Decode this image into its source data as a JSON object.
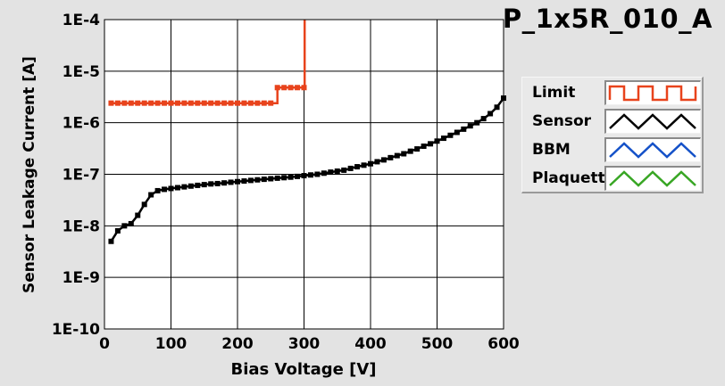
{
  "chart_data": {
    "type": "line",
    "title": "P_1x5R_010_A",
    "xlabel": "Bias Voltage [V]",
    "ylabel": "Sensor Leakage Current [A]",
    "xlim": [
      0,
      600
    ],
    "ylim": [
      1e-10,
      0.0001
    ],
    "y_scale": "log",
    "grid": true,
    "legend_placement": "right",
    "x_ticks": [
      {
        "value": 0,
        "label": "0"
      },
      {
        "value": 100,
        "label": "100"
      },
      {
        "value": 200,
        "label": "200"
      },
      {
        "value": 300,
        "label": "300"
      },
      {
        "value": 400,
        "label": "400"
      },
      {
        "value": 500,
        "label": "500"
      },
      {
        "value": 600,
        "label": "600"
      }
    ],
    "y_ticks": [
      {
        "value": 0.0001,
        "label": "1E-4"
      },
      {
        "value": 1e-05,
        "label": "1E-5"
      },
      {
        "value": 1e-06,
        "label": "1E-6"
      },
      {
        "value": 1e-07,
        "label": "1E-7"
      },
      {
        "value": 1e-08,
        "label": "1E-8"
      },
      {
        "value": 1e-09,
        "label": "1E-9"
      },
      {
        "value": 1e-10,
        "label": "1E-10"
      }
    ],
    "legend": [
      {
        "name": "Limit",
        "color": "#e8431c"
      },
      {
        "name": "Sensor",
        "color": "#000000"
      },
      {
        "name": "BBM",
        "color": "#1451c8"
      },
      {
        "name": "Plaquette",
        "color": "#38a624"
      }
    ],
    "series": [
      {
        "name": "Limit",
        "color": "#e8431c",
        "step": true,
        "x": [
          10,
          20,
          30,
          40,
          50,
          60,
          70,
          80,
          90,
          100,
          110,
          120,
          130,
          140,
          150,
          160,
          170,
          180,
          190,
          200,
          210,
          220,
          230,
          240,
          250,
          260,
          270,
          280,
          290,
          300,
          301
        ],
        "y": [
          2.4e-06,
          2.4e-06,
          2.4e-06,
          2.4e-06,
          2.4e-06,
          2.4e-06,
          2.4e-06,
          2.4e-06,
          2.4e-06,
          2.4e-06,
          2.4e-06,
          2.4e-06,
          2.4e-06,
          2.4e-06,
          2.4e-06,
          2.4e-06,
          2.4e-06,
          2.4e-06,
          2.4e-06,
          2.4e-06,
          2.4e-06,
          2.4e-06,
          2.4e-06,
          2.4e-06,
          2.4e-06,
          4.8e-06,
          4.8e-06,
          4.8e-06,
          4.8e-06,
          4.8e-06,
          0.0001
        ]
      },
      {
        "name": "Sensor",
        "color": "#000000",
        "x": [
          10,
          20,
          30,
          40,
          50,
          60,
          70,
          80,
          90,
          100,
          110,
          120,
          130,
          140,
          150,
          160,
          170,
          180,
          190,
          200,
          210,
          220,
          230,
          240,
          250,
          260,
          270,
          280,
          290,
          300,
          310,
          320,
          330,
          340,
          350,
          360,
          370,
          380,
          390,
          400,
          410,
          420,
          430,
          440,
          450,
          460,
          470,
          480,
          490,
          500,
          510,
          520,
          530,
          540,
          550,
          560,
          570,
          580,
          590,
          600
        ],
        "y": [
          5e-09,
          8e-09,
          1e-08,
          1.1e-08,
          1.6e-08,
          2.6e-08,
          4e-08,
          4.8e-08,
          5.1e-08,
          5.3e-08,
          5.5e-08,
          5.7e-08,
          5.9e-08,
          6.1e-08,
          6.3e-08,
          6.5e-08,
          6.6e-08,
          6.8e-08,
          7e-08,
          7.2e-08,
          7.4e-08,
          7.6e-08,
          7.8e-08,
          8e-08,
          8.2e-08,
          8.4e-08,
          8.6e-08,
          8.8e-08,
          9.1e-08,
          9.4e-08,
          9.7e-08,
          1e-07,
          1.05e-07,
          1.1e-07,
          1.15e-07,
          1.2e-07,
          1.3e-07,
          1.4e-07,
          1.5e-07,
          1.6e-07,
          1.75e-07,
          1.9e-07,
          2.1e-07,
          2.3e-07,
          2.5e-07,
          2.8e-07,
          3.1e-07,
          3.5e-07,
          3.9e-07,
          4.4e-07,
          5e-07,
          5.7e-07,
          6.5e-07,
          7.5e-07,
          8.7e-07,
          1e-06,
          1.2e-06,
          1.5e-06,
          2e-06,
          3e-06
        ]
      }
    ]
  }
}
